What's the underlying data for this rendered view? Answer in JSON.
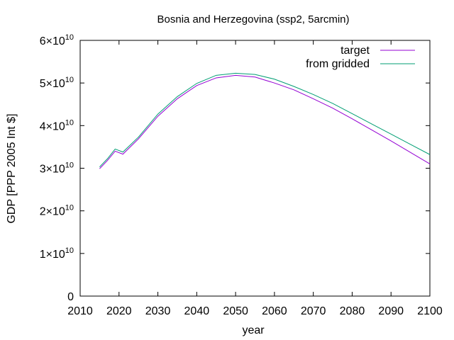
{
  "chart_data": {
    "type": "line",
    "title": "Bosnia and Herzegovina (ssp2, 5arcmin)",
    "xlabel": "year",
    "ylabel": "GDP [PPP 2005 Int $]",
    "xlim": [
      2010,
      2100
    ],
    "ylim": [
      0,
      60000000000
    ],
    "grid": false,
    "legend_position": "top-right",
    "x_ticks": [
      2010,
      2020,
      2030,
      2040,
      2050,
      2060,
      2070,
      2080,
      2090,
      2100
    ],
    "x_tick_labels": [
      "2010",
      "2020",
      "2030",
      "2040",
      "2050",
      "2060",
      "2070",
      "2080",
      "2090",
      "2100"
    ],
    "y_ticks": [
      {
        "value": 0,
        "base": "0",
        "exp": ""
      },
      {
        "value": 10000000000,
        "base": "1×10",
        "exp": "10"
      },
      {
        "value": 20000000000,
        "base": "2×10",
        "exp": "10"
      },
      {
        "value": 30000000000,
        "base": "3×10",
        "exp": "10"
      },
      {
        "value": 40000000000,
        "base": "4×10",
        "exp": "10"
      },
      {
        "value": 50000000000,
        "base": "5×10",
        "exp": "10"
      },
      {
        "value": 60000000000,
        "base": "6×10",
        "exp": "10"
      }
    ],
    "x": [
      2015,
      2017,
      2019,
      2021,
      2025,
      2030,
      2035,
      2040,
      2045,
      2050,
      2055,
      2060,
      2065,
      2070,
      2075,
      2080,
      2085,
      2090,
      2095,
      2100
    ],
    "series": [
      {
        "name": "target",
        "color": "#9400d3",
        "values": [
          29900000000.0,
          31800000000.0,
          34000000000.0,
          33300000000.0,
          36900000000.0,
          42200000000.0,
          46300000000.0,
          49400000000.0,
          51200000000.0,
          51800000000.0,
          51400000000.0,
          50000000000.0,
          48400000000.0,
          46300000000.0,
          44100000000.0,
          41600000000.0,
          39000000000.0,
          36400000000.0,
          33700000000.0,
          31000000000.0
        ]
      },
      {
        "name": "from gridded",
        "color": "#009e73",
        "values": [
          30300000000.0,
          32200000000.0,
          34500000000.0,
          33800000000.0,
          37300000000.0,
          42700000000.0,
          46800000000.0,
          49900000000.0,
          51800000000.0,
          52300000000.0,
          52000000000.0,
          50900000000.0,
          49200000000.0,
          47300000000.0,
          45200000000.0,
          42800000000.0,
          40400000000.0,
          38000000000.0,
          35600000000.0,
          33200000000.0
        ]
      }
    ]
  }
}
